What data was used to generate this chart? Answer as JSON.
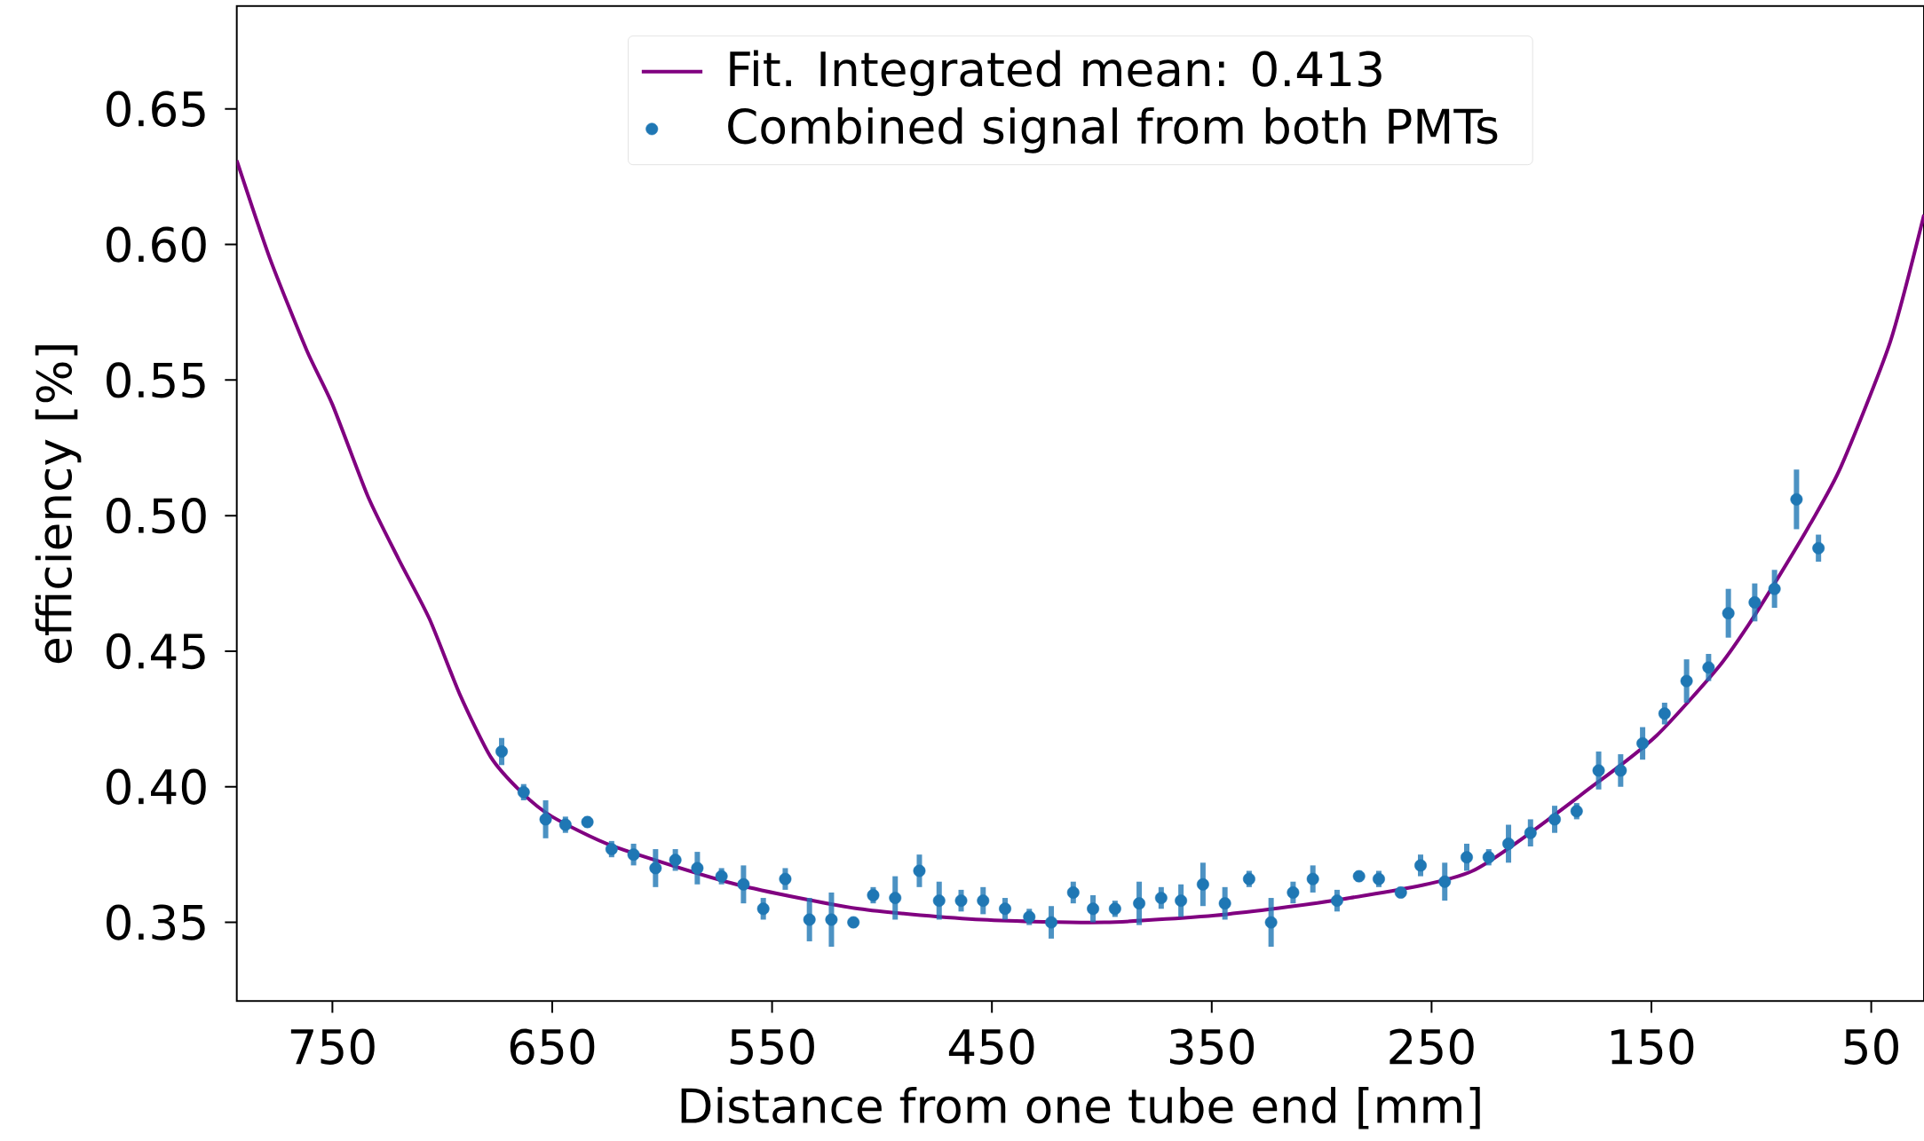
{
  "chart_data": {
    "type": "scatter",
    "xlabel": "Distance from one tube end [mm]",
    "ylabel": "efficiency [%]",
    "xlim": [
      793.5,
      26
    ],
    "ylim": [
      0.321,
      0.688
    ],
    "xticks": [
      750,
      650,
      550,
      450,
      350,
      250,
      150,
      50
    ],
    "yticks": [
      {
        "value": 0.35,
        "label": "0.35"
      },
      {
        "value": 0.4,
        "label": "0.40"
      },
      {
        "value": 0.45,
        "label": "0.45"
      },
      {
        "value": 0.5,
        "label": "0.50"
      },
      {
        "value": 0.55,
        "label": "0.55"
      },
      {
        "value": 0.6,
        "label": "0.60"
      },
      {
        "value": 0.65,
        "label": "0.65"
      }
    ],
    "grid": false,
    "legend": "top",
    "series": [
      {
        "name": "Fit. Integrated mean: 0.413",
        "type": "line",
        "color": "#800080",
        "line_style": "solid",
        "x": [
          793.5,
          778.5,
          761.7,
          750,
          733.8,
          719.9,
          705.9,
          692.0,
          678.0,
          664.0,
          650.1,
          622.1,
          566.3,
          510.5,
          454.6,
          398.8,
          343.0,
          287.1,
          231.3,
          175.5,
          147.5,
          119.6,
          105.6,
          91.7,
          77.7,
          63.8,
          41.4,
          26
        ],
        "values": [
          0.631,
          0.595,
          0.561,
          0.541,
          0.507,
          0.484,
          0.462,
          0.434,
          0.411,
          0.398,
          0.389,
          0.378,
          0.364,
          0.355,
          0.351,
          0.35,
          0.353,
          0.359,
          0.369,
          0.401,
          0.419,
          0.444,
          0.46,
          0.478,
          0.497,
          0.518,
          0.564,
          0.611
        ]
      },
      {
        "name": "Combined signal from both PMTs",
        "marker": "circle",
        "color": "#1f77b4",
        "x": [
          673,
          663,
          653,
          644,
          634,
          623,
          613,
          603,
          594,
          584,
          573,
          563,
          554,
          544,
          533,
          523,
          513,
          504,
          494,
          483,
          474,
          464,
          454,
          444,
          433,
          423,
          413,
          404,
          394,
          383,
          373,
          364,
          354,
          344,
          333,
          323,
          313,
          304,
          293,
          283,
          274,
          264,
          255,
          244,
          234,
          224,
          215,
          205,
          194,
          184,
          174,
          164,
          154,
          144,
          134,
          124,
          115,
          103,
          94,
          84,
          74
        ],
        "values": [
          0.413,
          0.398,
          0.388,
          0.386,
          0.387,
          0.377,
          0.375,
          0.37,
          0.373,
          0.37,
          0.367,
          0.364,
          0.355,
          0.366,
          0.351,
          0.351,
          0.35,
          0.36,
          0.359,
          0.369,
          0.358,
          0.358,
          0.358,
          0.355,
          0.352,
          0.35,
          0.361,
          0.355,
          0.355,
          0.357,
          0.359,
          0.358,
          0.364,
          0.357,
          0.366,
          0.35,
          0.361,
          0.366,
          0.358,
          0.367,
          0.366,
          0.361,
          0.371,
          0.365,
          0.374,
          0.374,
          0.379,
          0.383,
          0.388,
          0.391,
          0.406,
          0.406,
          0.416,
          0.427,
          0.439,
          0.444,
          0.464,
          0.468,
          0.473,
          0.506,
          0.488
        ],
        "errors": [
          0.005,
          0.003,
          0.007,
          0.003,
          0.002,
          0.003,
          0.004,
          0.007,
          0.004,
          0.006,
          0.003,
          0.007,
          0.004,
          0.004,
          0.008,
          0.01,
          0.002,
          0.003,
          0.008,
          0.006,
          0.007,
          0.004,
          0.005,
          0.004,
          0.003,
          0.006,
          0.004,
          0.005,
          0.003,
          0.008,
          0.004,
          0.006,
          0.008,
          0.006,
          0.003,
          0.009,
          0.004,
          0.005,
          0.004,
          0.002,
          0.003,
          0.002,
          0.004,
          0.007,
          0.005,
          0.003,
          0.007,
          0.005,
          0.005,
          0.003,
          0.007,
          0.006,
          0.006,
          0.004,
          0.008,
          0.005,
          0.009,
          0.007,
          0.007,
          0.011,
          0.005
        ]
      }
    ]
  }
}
